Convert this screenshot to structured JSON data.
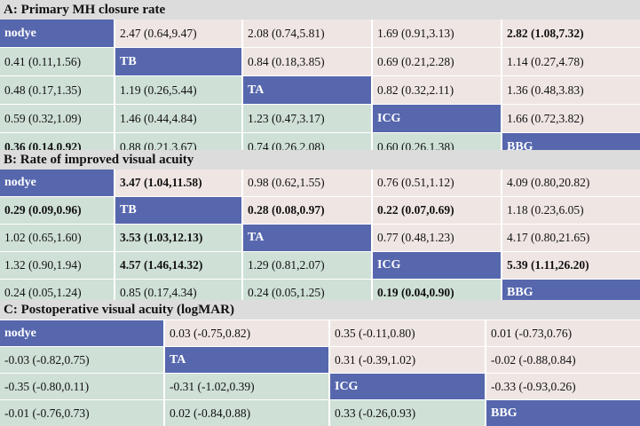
{
  "panels": [
    {
      "title": "A: Primary MH closure rate",
      "rows": [
        [
          {
            "t": "nodye",
            "diag": true
          },
          {
            "t": "2.47 (0.64,9.47)"
          },
          {
            "t": "2.08 (0.74,5.81)"
          },
          {
            "t": "1.69 (0.91,3.13)"
          },
          {
            "t": "2.82 (1.08,7.32)",
            "b": true
          }
        ],
        [
          {
            "t": "0.41 (0.11,1.56)"
          },
          {
            "t": "TB",
            "diag": true
          },
          {
            "t": "0.84 (0.18,3.85)"
          },
          {
            "t": "0.69 (0.21,2.28)"
          },
          {
            "t": "1.14 (0.27,4.78)"
          }
        ],
        [
          {
            "t": "0.48 (0.17,1.35)"
          },
          {
            "t": "1.19 (0.26,5.44)"
          },
          {
            "t": "TA",
            "diag": true
          },
          {
            "t": "0.82 (0.32,2.11)"
          },
          {
            "t": "1.36 (0.48,3.83)"
          }
        ],
        [
          {
            "t": "0.59 (0.32,1.09)"
          },
          {
            "t": "1.46 (0.44,4.84)"
          },
          {
            "t": "1.23 (0.47,3.17)"
          },
          {
            "t": "ICG",
            "diag": true
          },
          {
            "t": "1.66 (0.72,3.82)"
          }
        ],
        [
          {
            "t": "0.36 (0.14,0.92)",
            "b": true
          },
          {
            "t": "0.88 (0.21,3.67)"
          },
          {
            "t": "0.74 (0.26,2.08)"
          },
          {
            "t": "0.60 (0.26,1.38)"
          },
          {
            "t": "BBG",
            "diag": true
          }
        ]
      ]
    },
    {
      "title": "B: Rate of improved visual acuity",
      "rows": [
        [
          {
            "t": "nodye",
            "diag": true
          },
          {
            "t": "3.47 (1.04,11.58)",
            "b": true
          },
          {
            "t": "0.98 (0.62,1.55)"
          },
          {
            "t": "0.76 (0.51,1.12)"
          },
          {
            "t": "4.09 (0.80,20.82)"
          }
        ],
        [
          {
            "t": "0.29 (0.09,0.96)",
            "b": true
          },
          {
            "t": "TB",
            "diag": true
          },
          {
            "t": "0.28 (0.08,0.97)",
            "b": true
          },
          {
            "t": "0.22 (0.07,0.69)",
            "b": true
          },
          {
            "t": "1.18 (0.23,6.05)"
          }
        ],
        [
          {
            "t": "1.02 (0.65,1.60)"
          },
          {
            "t": "3.53 (1.03,12.13)",
            "b": true
          },
          {
            "t": "TA",
            "diag": true
          },
          {
            "t": "0.77 (0.48,1.23)"
          },
          {
            "t": "4.17 (0.80,21.65)"
          }
        ],
        [
          {
            "t": "1.32 (0.90,1.94)"
          },
          {
            "t": "4.57 (1.46,14.32)",
            "b": true
          },
          {
            "t": "1.29 (0.81,2.07)"
          },
          {
            "t": "ICG",
            "diag": true
          },
          {
            "t": "5.39 (1.11,26.20)",
            "b": true
          }
        ],
        [
          {
            "t": "0.24 (0.05,1.24)"
          },
          {
            "t": "0.85 (0.17,4.34)"
          },
          {
            "t": "0.24 (0.05,1.25)"
          },
          {
            "t": "0.19 (0.04,0.90)",
            "b": true
          },
          {
            "t": "BBG",
            "diag": true
          }
        ]
      ]
    },
    {
      "title": "C: Postoperative visual acuity (logMAR)",
      "rows": [
        [
          {
            "t": "nodye",
            "diag": true
          },
          {
            "t": "0.03 (-0.75,0.82)"
          },
          {
            "t": "0.35 (-0.11,0.80)"
          },
          {
            "t": "0.01 (-0.73,0.76)"
          }
        ],
        [
          {
            "t": "-0.03 (-0.82,0.75)"
          },
          {
            "t": "TA",
            "diag": true
          },
          {
            "t": "0.31 (-0.39,1.02)"
          },
          {
            "t": "-0.02 (-0.88,0.84)"
          }
        ],
        [
          {
            "t": "-0.35 (-0.80,0.11)"
          },
          {
            "t": "-0.31 (-1.02,0.39)"
          },
          {
            "t": "ICG",
            "diag": true
          },
          {
            "t": "-0.33 (-0.93,0.26)"
          }
        ],
        [
          {
            "t": "-0.01 (-0.76,0.73)"
          },
          {
            "t": "0.02 (-0.84,0.88)"
          },
          {
            "t": "0.33 (-0.26,0.93)"
          },
          {
            "t": "BBG",
            "diag": true
          }
        ]
      ]
    }
  ]
}
